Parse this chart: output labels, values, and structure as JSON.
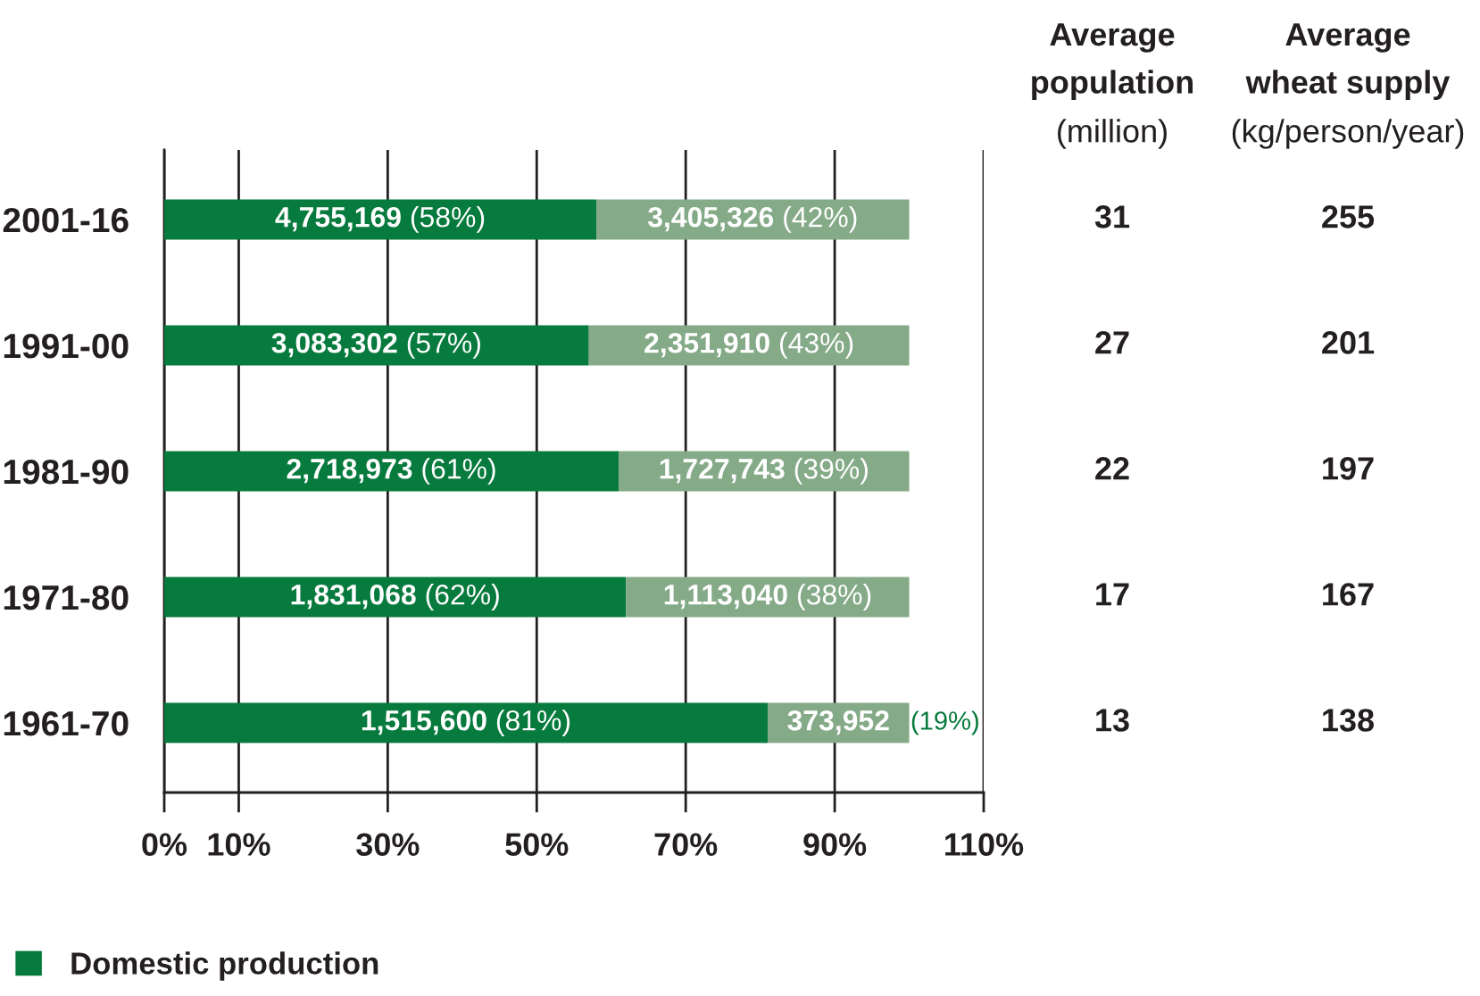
{
  "chart_data": [
    {
      "type": "bar",
      "orientation": "horizontal",
      "stacked": true,
      "categories": [
        "2001-16",
        "1991-00",
        "1981-90",
        "1971-80",
        "1961-70"
      ],
      "series": [
        {
          "name": "Domestic production",
          "color": "#077a3d",
          "values": [
            58,
            57,
            61,
            62,
            81
          ],
          "value_labels": [
            "4,755,169 (58%)",
            "3,083,302 (57%)",
            "2,718,973 (61%)",
            "1,831,068 (62%)",
            "1,515,600 (81%)"
          ]
        },
        {
          "color": "#85aa88",
          "values": [
            42,
            43,
            39,
            38,
            19
          ],
          "value_labels": [
            "3,405,326 (42%)",
            "2,351,910 (43%)",
            "1,727,743 (39%)",
            "1,113,040 (38%)",
            "373,952 (19%)"
          ]
        }
      ],
      "xlim": [
        0,
        110
      ],
      "xticks": [
        {
          "value": 0,
          "label": "0%"
        },
        {
          "value": 10,
          "label": "10%"
        },
        {
          "value": 30,
          "label": "30%"
        },
        {
          "value": 50,
          "label": "50%"
        },
        {
          "value": 70,
          "label": "70%"
        },
        {
          "value": 90,
          "label": "90%"
        },
        {
          "value": 110,
          "label": "110%"
        }
      ],
      "grid": "x",
      "legend": "bottom left"
    },
    {
      "type": "other",
      "categories": [
        "Average\npopulation\n(million)",
        "Average\nwheat supply\n(kg/person/year)"
      ],
      "annotations": [
        "31",
        "255",
        "27",
        "201",
        "22",
        "197",
        "17",
        "167",
        "13",
        "138"
      ]
    }
  ]
}
